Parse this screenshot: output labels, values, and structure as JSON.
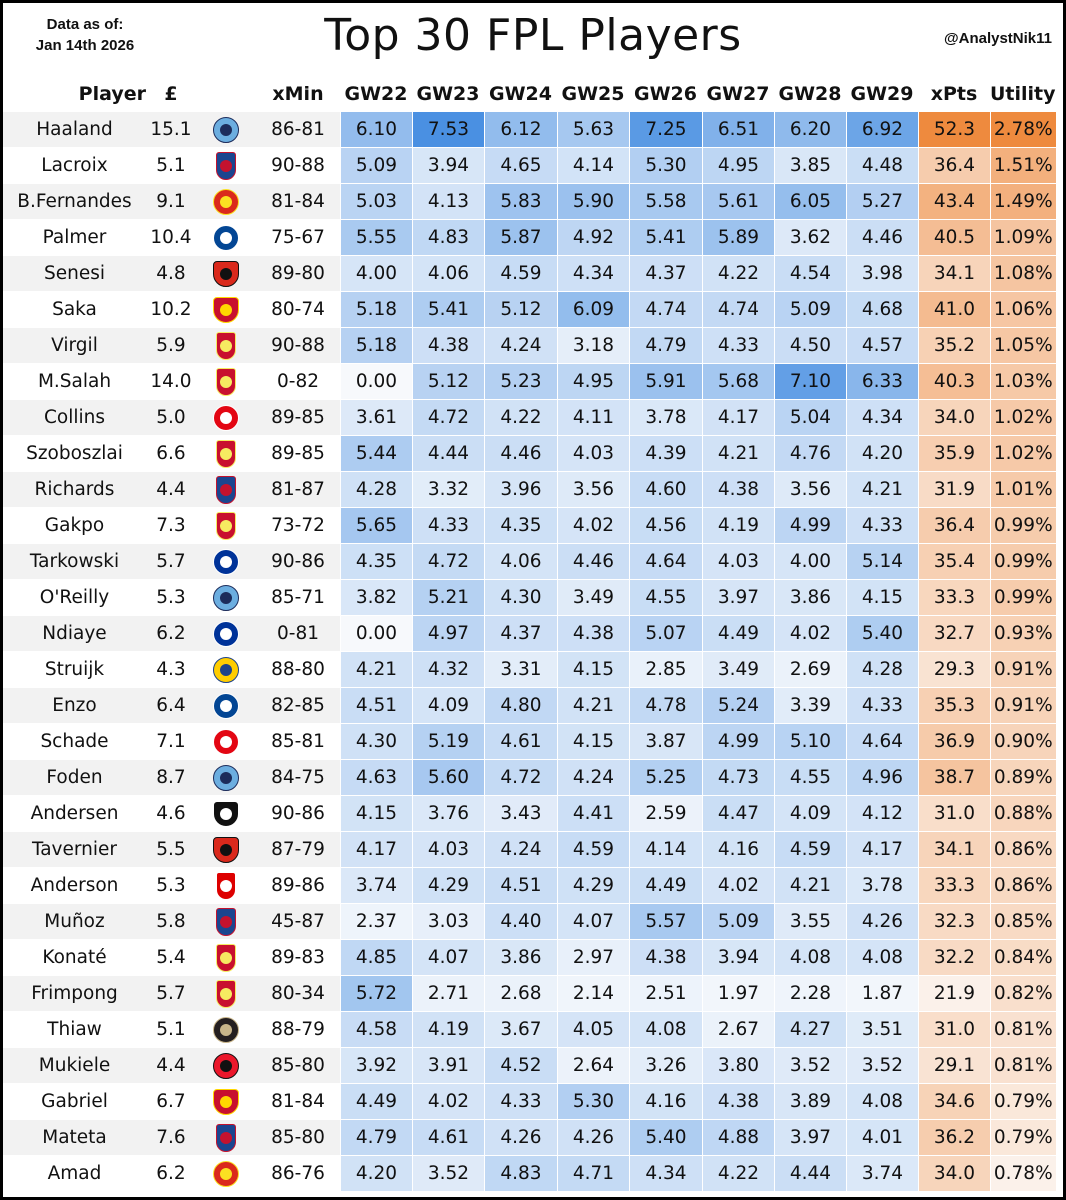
{
  "header": {
    "asof_line1": "Data as of:",
    "asof_line2": "Jan 14th 2026",
    "title": "Top 30 FPL Players",
    "handle": "@AnalystNik11"
  },
  "columns": {
    "player": "Player",
    "price": "£",
    "xmin": "xMin",
    "gws": [
      "GW22",
      "GW23",
      "GW24",
      "GW25",
      "GW26",
      "GW27",
      "GW28",
      "GW29"
    ],
    "xpts": "xPts",
    "utility": "Utility"
  },
  "team_badges": {
    "MCI": {
      "icon": "man-city-badge-icon",
      "outer": "#6caee0",
      "inner": "#1c2c5b",
      "shape": "round"
    },
    "CRY": {
      "icon": "crystal-palace-badge-icon",
      "outer": "#1b458f",
      "inner": "#c4122e",
      "shape": "tall"
    },
    "MUN": {
      "icon": "man-utd-badge-icon",
      "outer": "#da291c",
      "inner": "#fbe122",
      "shape": "round"
    },
    "CHE": {
      "icon": "chelsea-badge-icon",
      "outer": "#034694",
      "inner": "#ffffff",
      "shape": "round"
    },
    "BOU": {
      "icon": "bournemouth-badge-icon",
      "outer": "#da291c",
      "inner": "#111111",
      "shape": "shield"
    },
    "ARS": {
      "icon": "arsenal-badge-icon",
      "outer": "#c8102e",
      "inner": "#ffd700",
      "shape": "shield"
    },
    "LIV": {
      "icon": "liverpool-badge-icon",
      "outer": "#c8102e",
      "inner": "#f6eb61",
      "shape": "tall"
    },
    "BRE": {
      "icon": "brentford-badge-icon",
      "outer": "#e30613",
      "inner": "#ffffff",
      "shape": "round"
    },
    "EVE": {
      "icon": "everton-badge-icon",
      "outer": "#003399",
      "inner": "#ffffff",
      "shape": "round"
    },
    "LEE": {
      "icon": "leeds-badge-icon",
      "outer": "#ffcd00",
      "inner": "#1d428a",
      "shape": "round"
    },
    "FUL": {
      "icon": "fulham-badge-icon",
      "outer": "#111111",
      "inner": "#ffffff",
      "shape": "shield"
    },
    "NFO": {
      "icon": "nottingham-forest-badge-icon",
      "outer": "#dd0000",
      "inner": "#ffffff",
      "shape": "tall"
    },
    "NEW": {
      "icon": "newcastle-badge-icon",
      "outer": "#241f20",
      "inner": "#c8b58a",
      "shape": "round"
    },
    "SUN": {
      "icon": "sunderland-badge-icon",
      "outer": "#eb172b",
      "inner": "#111111",
      "shape": "round"
    }
  },
  "chart_data": {
    "type": "table",
    "title": "Top 30 FPL Players",
    "players": [
      {
        "name": "Haaland",
        "price": "15.1",
        "team": "MCI",
        "xmin": "86-81",
        "gw": [
          "6.10",
          "7.53",
          "6.12",
          "5.63",
          "7.25",
          "6.51",
          "6.20",
          "6.92"
        ],
        "xpts": "52.3",
        "utility": "2.78%"
      },
      {
        "name": "Lacroix",
        "price": "5.1",
        "team": "CRY",
        "xmin": "90-88",
        "gw": [
          "5.09",
          "3.94",
          "4.65",
          "4.14",
          "5.30",
          "4.95",
          "3.85",
          "4.48"
        ],
        "xpts": "36.4",
        "utility": "1.51%"
      },
      {
        "name": "B.Fernandes",
        "price": "9.1",
        "team": "MUN",
        "xmin": "81-84",
        "gw": [
          "5.03",
          "4.13",
          "5.83",
          "5.90",
          "5.58",
          "5.61",
          "6.05",
          "5.27"
        ],
        "xpts": "43.4",
        "utility": "1.49%"
      },
      {
        "name": "Palmer",
        "price": "10.4",
        "team": "CHE",
        "xmin": "75-67",
        "gw": [
          "5.55",
          "4.83",
          "5.87",
          "4.92",
          "5.41",
          "5.89",
          "3.62",
          "4.46"
        ],
        "xpts": "40.5",
        "utility": "1.09%"
      },
      {
        "name": "Senesi",
        "price": "4.8",
        "team": "BOU",
        "xmin": "89-80",
        "gw": [
          "4.00",
          "4.06",
          "4.59",
          "4.34",
          "4.37",
          "4.22",
          "4.54",
          "3.98"
        ],
        "xpts": "34.1",
        "utility": "1.08%"
      },
      {
        "name": "Saka",
        "price": "10.2",
        "team": "ARS",
        "xmin": "80-74",
        "gw": [
          "5.18",
          "5.41",
          "5.12",
          "6.09",
          "4.74",
          "4.74",
          "5.09",
          "4.68"
        ],
        "xpts": "41.0",
        "utility": "1.06%"
      },
      {
        "name": "Virgil",
        "price": "5.9",
        "team": "LIV",
        "xmin": "90-88",
        "gw": [
          "5.18",
          "4.38",
          "4.24",
          "3.18",
          "4.79",
          "4.33",
          "4.50",
          "4.57"
        ],
        "xpts": "35.2",
        "utility": "1.05%"
      },
      {
        "name": "M.Salah",
        "price": "14.0",
        "team": "LIV",
        "xmin": "0-82",
        "gw": [
          "0.00",
          "5.12",
          "5.23",
          "4.95",
          "5.91",
          "5.68",
          "7.10",
          "6.33"
        ],
        "xpts": "40.3",
        "utility": "1.03%"
      },
      {
        "name": "Collins",
        "price": "5.0",
        "team": "BRE",
        "xmin": "89-85",
        "gw": [
          "3.61",
          "4.72",
          "4.22",
          "4.11",
          "3.78",
          "4.17",
          "5.04",
          "4.34"
        ],
        "xpts": "34.0",
        "utility": "1.02%"
      },
      {
        "name": "Szoboszlai",
        "price": "6.6",
        "team": "LIV",
        "xmin": "89-85",
        "gw": [
          "5.44",
          "4.44",
          "4.46",
          "4.03",
          "4.39",
          "4.21",
          "4.76",
          "4.20"
        ],
        "xpts": "35.9",
        "utility": "1.02%"
      },
      {
        "name": "Richards",
        "price": "4.4",
        "team": "CRY",
        "xmin": "81-87",
        "gw": [
          "4.28",
          "3.32",
          "3.96",
          "3.56",
          "4.60",
          "4.38",
          "3.56",
          "4.21"
        ],
        "xpts": "31.9",
        "utility": "1.01%"
      },
      {
        "name": "Gakpo",
        "price": "7.3",
        "team": "LIV",
        "xmin": "73-72",
        "gw": [
          "5.65",
          "4.33",
          "4.35",
          "4.02",
          "4.56",
          "4.19",
          "4.99",
          "4.33"
        ],
        "xpts": "36.4",
        "utility": "0.99%"
      },
      {
        "name": "Tarkowski",
        "price": "5.7",
        "team": "EVE",
        "xmin": "90-86",
        "gw": [
          "4.35",
          "4.72",
          "4.06",
          "4.46",
          "4.64",
          "4.03",
          "4.00",
          "5.14"
        ],
        "xpts": "35.4",
        "utility": "0.99%"
      },
      {
        "name": "O'Reilly",
        "price": "5.3",
        "team": "MCI",
        "xmin": "85-71",
        "gw": [
          "3.82",
          "5.21",
          "4.30",
          "3.49",
          "4.55",
          "3.97",
          "3.86",
          "4.15"
        ],
        "xpts": "33.3",
        "utility": "0.99%"
      },
      {
        "name": "Ndiaye",
        "price": "6.2",
        "team": "EVE",
        "xmin": "0-81",
        "gw": [
          "0.00",
          "4.97",
          "4.37",
          "4.38",
          "5.07",
          "4.49",
          "4.02",
          "5.40"
        ],
        "xpts": "32.7",
        "utility": "0.93%"
      },
      {
        "name": "Struijk",
        "price": "4.3",
        "team": "LEE",
        "xmin": "88-80",
        "gw": [
          "4.21",
          "4.32",
          "3.31",
          "4.15",
          "2.85",
          "3.49",
          "2.69",
          "4.28"
        ],
        "xpts": "29.3",
        "utility": "0.91%"
      },
      {
        "name": "Enzo",
        "price": "6.4",
        "team": "CHE",
        "xmin": "82-85",
        "gw": [
          "4.51",
          "4.09",
          "4.80",
          "4.21",
          "4.78",
          "5.24",
          "3.39",
          "4.33"
        ],
        "xpts": "35.3",
        "utility": "0.91%"
      },
      {
        "name": "Schade",
        "price": "7.1",
        "team": "BRE",
        "xmin": "85-81",
        "gw": [
          "4.30",
          "5.19",
          "4.61",
          "4.15",
          "3.87",
          "4.99",
          "5.10",
          "4.64"
        ],
        "xpts": "36.9",
        "utility": "0.90%"
      },
      {
        "name": "Foden",
        "price": "8.7",
        "team": "MCI",
        "xmin": "84-75",
        "gw": [
          "4.63",
          "5.60",
          "4.72",
          "4.24",
          "5.25",
          "4.73",
          "4.55",
          "4.96"
        ],
        "xpts": "38.7",
        "utility": "0.89%"
      },
      {
        "name": "Andersen",
        "price": "4.6",
        "team": "FUL",
        "xmin": "90-86",
        "gw": [
          "4.15",
          "3.76",
          "3.43",
          "4.41",
          "2.59",
          "4.47",
          "4.09",
          "4.12"
        ],
        "xpts": "31.0",
        "utility": "0.88%"
      },
      {
        "name": "Tavernier",
        "price": "5.5",
        "team": "BOU",
        "xmin": "87-79",
        "gw": [
          "4.17",
          "4.03",
          "4.24",
          "4.59",
          "4.14",
          "4.16",
          "4.59",
          "4.17"
        ],
        "xpts": "34.1",
        "utility": "0.86%"
      },
      {
        "name": "Anderson",
        "price": "5.3",
        "team": "NFO",
        "xmin": "89-86",
        "gw": [
          "3.74",
          "4.29",
          "4.51",
          "4.29",
          "4.49",
          "4.02",
          "4.21",
          "3.78"
        ],
        "xpts": "33.3",
        "utility": "0.86%"
      },
      {
        "name": "Muñoz",
        "price": "5.8",
        "team": "CRY",
        "xmin": "45-87",
        "gw": [
          "2.37",
          "3.03",
          "4.40",
          "4.07",
          "5.57",
          "5.09",
          "3.55",
          "4.26"
        ],
        "xpts": "32.3",
        "utility": "0.85%"
      },
      {
        "name": "Konaté",
        "price": "5.4",
        "team": "LIV",
        "xmin": "89-83",
        "gw": [
          "4.85",
          "4.07",
          "3.86",
          "2.97",
          "4.38",
          "3.94",
          "4.08",
          "4.08"
        ],
        "xpts": "32.2",
        "utility": "0.84%"
      },
      {
        "name": "Frimpong",
        "price": "5.7",
        "team": "LIV",
        "xmin": "80-34",
        "gw": [
          "5.72",
          "2.71",
          "2.68",
          "2.14",
          "2.51",
          "1.97",
          "2.28",
          "1.87"
        ],
        "xpts": "21.9",
        "utility": "0.82%"
      },
      {
        "name": "Thiaw",
        "price": "5.1",
        "team": "NEW",
        "xmin": "88-79",
        "gw": [
          "4.58",
          "4.19",
          "3.67",
          "4.05",
          "4.08",
          "2.67",
          "4.27",
          "3.51"
        ],
        "xpts": "31.0",
        "utility": "0.81%"
      },
      {
        "name": "Mukiele",
        "price": "4.4",
        "team": "SUN",
        "xmin": "85-80",
        "gw": [
          "3.92",
          "3.91",
          "4.52",
          "2.64",
          "3.26",
          "3.80",
          "3.52",
          "3.52"
        ],
        "xpts": "29.1",
        "utility": "0.81%"
      },
      {
        "name": "Gabriel",
        "price": "6.7",
        "team": "ARS",
        "xmin": "81-84",
        "gw": [
          "4.49",
          "4.02",
          "4.33",
          "5.30",
          "4.16",
          "4.38",
          "3.89",
          "4.08"
        ],
        "xpts": "34.6",
        "utility": "0.79%"
      },
      {
        "name": "Mateta",
        "price": "7.6",
        "team": "CRY",
        "xmin": "85-80",
        "gw": [
          "4.79",
          "4.61",
          "4.26",
          "4.26",
          "5.40",
          "4.88",
          "3.97",
          "4.01"
        ],
        "xpts": "36.2",
        "utility": "0.79%"
      },
      {
        "name": "Amad",
        "price": "6.2",
        "team": "MUN",
        "xmin": "86-76",
        "gw": [
          "4.20",
          "3.52",
          "4.83",
          "4.71",
          "4.34",
          "4.22",
          "4.44",
          "3.74"
        ],
        "xpts": "34.0",
        "utility": "0.78%"
      }
    ],
    "color_scales": {
      "gw": {
        "low": "#f7f9fc",
        "high": "#4a90e2",
        "range": [
          0,
          7.53
        ]
      },
      "xpts": {
        "low": "#fbf1ea",
        "high": "#ee8a3e",
        "range": [
          21.9,
          52.3
        ]
      },
      "utility": {
        "low": "#fbf1ea",
        "high": "#ee8a3e",
        "range": [
          0.78,
          2.78
        ]
      }
    }
  }
}
